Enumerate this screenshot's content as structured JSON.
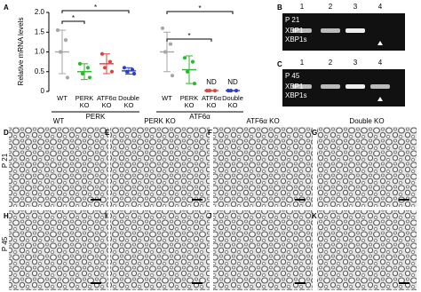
{
  "panel_labels": [
    "A",
    "B",
    "C",
    "D",
    "E",
    "F",
    "G",
    "H",
    "I",
    "J",
    "K"
  ],
  "chart_data": [
    {
      "type": "dot",
      "y_label": "Relative mRNA levels",
      "group_label": "PERK",
      "categories": [
        "WT",
        "PERK KO",
        "ATF6α KO",
        "Double KO"
      ],
      "ylim": [
        0,
        2
      ],
      "yticks": [
        0,
        0.5,
        {
          "value": 1,
          "label": "1.0"
        },
        1.5,
        {
          "value": 2,
          "label": "2.0"
        }
      ],
      "groups": [
        {
          "color": "#a6a6a6",
          "points": [
            1.55,
            1.3,
            1.0,
            0.35
          ],
          "mean": 1.0,
          "sd": 0.55
        },
        {
          "color": "#2eb82e",
          "points": [
            0.7,
            0.6,
            0.45,
            0.35
          ],
          "mean": 0.5,
          "sd": 0.2
        },
        {
          "color": "#e0443e",
          "points": [
            0.95,
            0.75,
            0.6,
            0.5
          ],
          "mean": 0.7,
          "sd": 0.25
        },
        {
          "color": "#2a3fd1",
          "points": [
            0.6,
            0.55,
            0.5,
            0.45
          ],
          "mean": 0.52,
          "sd": 0.08
        }
      ],
      "annotations": [
        "*",
        "*"
      ]
    },
    {
      "type": "dot",
      "group_label": "ATF6α",
      "categories": [
        "WT",
        "PERK KO",
        "ATF6α KO",
        "Double KO"
      ],
      "groups": [
        {
          "color": "#a6a6a6",
          "points": [
            1.6,
            1.2,
            1.0,
            0.4
          ],
          "mean": 1.0,
          "sd": 0.5
        },
        {
          "color": "#2eb82e",
          "points": [
            0.85,
            0.75,
            0.5,
            0.2
          ],
          "mean": 0.55,
          "sd": 0.35
        },
        {
          "color": "#e0443e",
          "points": [
            0.02,
            0.02,
            0.02
          ],
          "mean": 0.02,
          "sd": 0,
          "label": "ND"
        },
        {
          "color": "#2a3fd1",
          "points": [
            0.02,
            0.02,
            0.02
          ],
          "mean": 0.02,
          "sd": 0,
          "label": "ND"
        }
      ],
      "annotations": [
        "*",
        "*"
      ]
    }
  ],
  "gels": [
    {
      "stage": "P 21",
      "lanes": [
        "1",
        "2",
        "3",
        "4"
      ],
      "bands": [
        "XBP1",
        "XBP1s"
      ]
    },
    {
      "stage": "P 45",
      "lanes": [
        "1",
        "2",
        "3",
        "4"
      ],
      "bands": [
        "XBP1",
        "XBP1s"
      ]
    }
  ],
  "micrographs": {
    "columns": [
      "WT",
      "PERK KO",
      "ATF6α KO",
      "Double KO"
    ],
    "rows": [
      "P 21",
      "P 45"
    ]
  }
}
